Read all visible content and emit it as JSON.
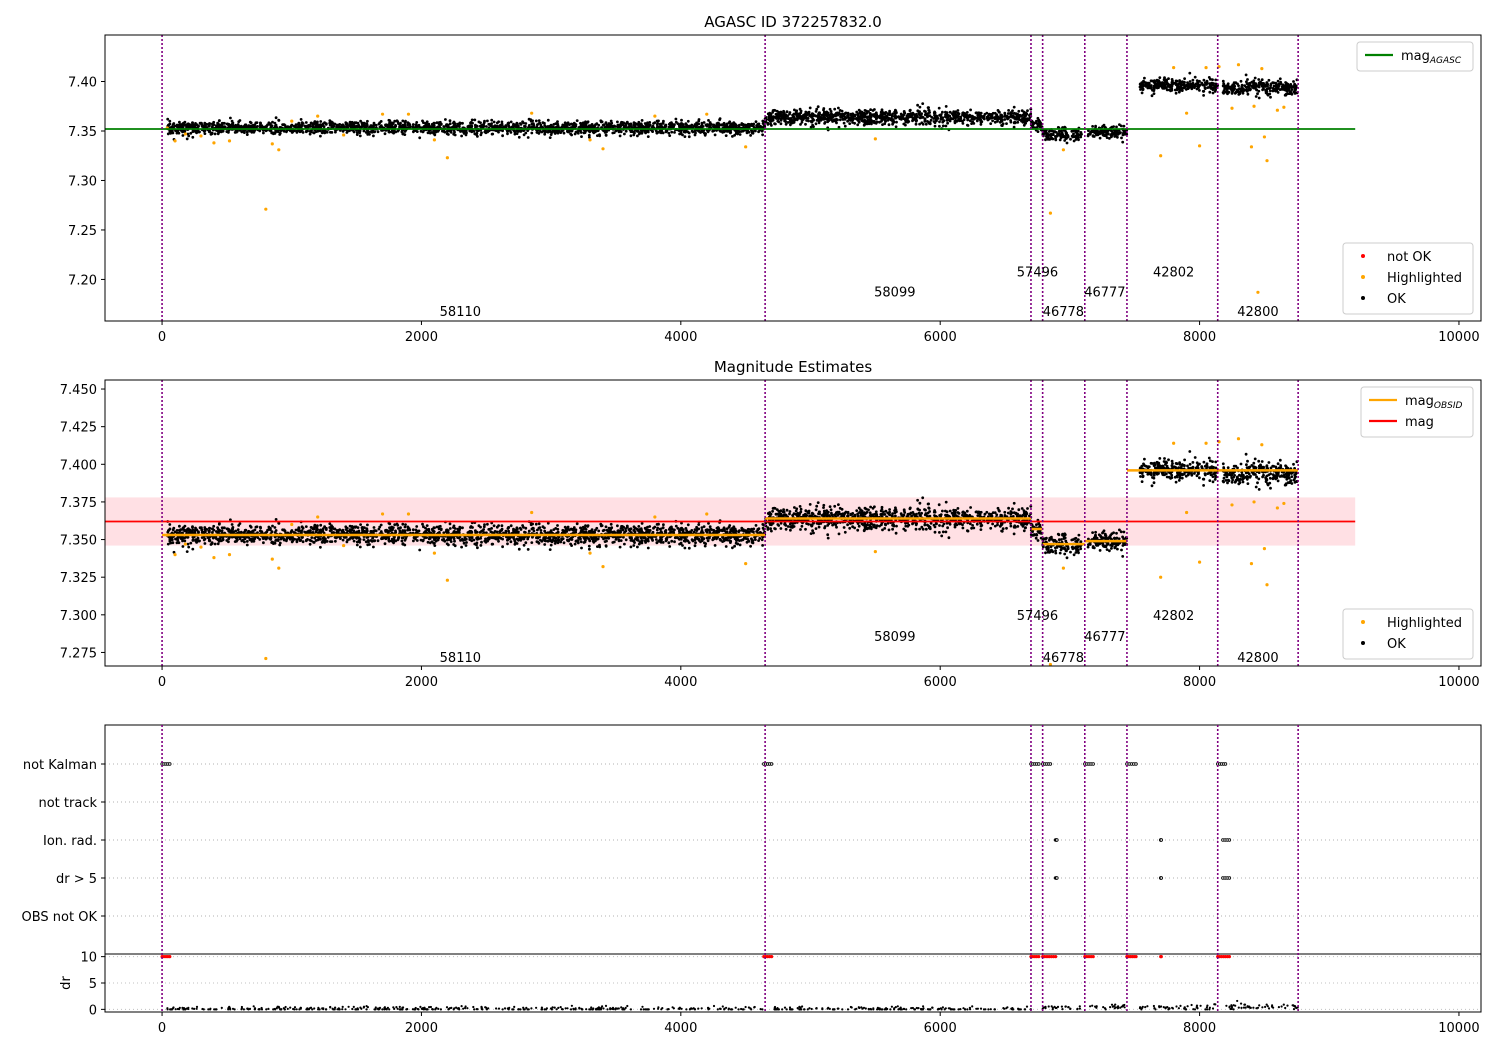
{
  "chart_data": [
    {
      "type": "scatter",
      "title": "AGASC ID 372257832.0",
      "xlim": [
        -440,
        10170
      ],
      "ylim": [
        7.158,
        7.447
      ],
      "xticks": [
        0,
        2000,
        4000,
        6000,
        8000,
        10000
      ],
      "xtick_labels": [
        "0",
        "2000",
        "4000",
        "6000",
        "8000",
        "10000"
      ],
      "yticks": [
        7.2,
        7.25,
        7.3,
        7.35,
        7.4
      ],
      "ytick_labels": [
        "7.20",
        "7.25",
        "7.30",
        "7.35",
        "7.40"
      ],
      "grid": false,
      "obs_boundaries": [
        0,
        4650,
        6700,
        6790,
        7115,
        7440,
        8140,
        8760
      ],
      "segments": [
        {
          "x0": 40,
          "x1": 4650,
          "center": 7.353,
          "spread": 0.006
        },
        {
          "x0": 4650,
          "x1": 6700,
          "center": 7.364,
          "spread": 0.007
        },
        {
          "x0": 6700,
          "x1": 6790,
          "center": 7.356,
          "spread": 0.005
        },
        {
          "x0": 6790,
          "x1": 7090,
          "center": 7.346,
          "spread": 0.006
        },
        {
          "x0": 7140,
          "x1": 7440,
          "center": 7.349,
          "spread": 0.006
        },
        {
          "x0": 7540,
          "x1": 8140,
          "center": 7.396,
          "spread": 0.006
        },
        {
          "x0": 8180,
          "x1": 8760,
          "center": 7.394,
          "spread": 0.007
        }
      ],
      "highlighted_points": [
        [
          40,
          7.353
        ],
        [
          100,
          7.34
        ],
        [
          180,
          7.347
        ],
        [
          300,
          7.345
        ],
        [
          400,
          7.338
        ],
        [
          520,
          7.34
        ],
        [
          800,
          7.271
        ],
        [
          850,
          7.337
        ],
        [
          900,
          7.331
        ],
        [
          1000,
          7.36
        ],
        [
          1200,
          7.365
        ],
        [
          1400,
          7.346
        ],
        [
          1700,
          7.367
        ],
        [
          1900,
          7.367
        ],
        [
          2100,
          7.341
        ],
        [
          2200,
          7.323
        ],
        [
          2850,
          7.368
        ],
        [
          3300,
          7.341
        ],
        [
          3400,
          7.332
        ],
        [
          3800,
          7.365
        ],
        [
          4200,
          7.367
        ],
        [
          4500,
          7.334
        ],
        [
          5500,
          7.342
        ],
        [
          6850,
          7.267
        ],
        [
          6950,
          7.331
        ],
        [
          7700,
          7.325
        ],
        [
          7800,
          7.414
        ],
        [
          7900,
          7.368
        ],
        [
          8000,
          7.335
        ],
        [
          8050,
          7.414
        ],
        [
          8150,
          7.415
        ],
        [
          8250,
          7.373
        ],
        [
          8300,
          7.417
        ],
        [
          8400,
          7.334
        ],
        [
          8420,
          7.375
        ],
        [
          8450,
          7.187
        ],
        [
          8480,
          7.413
        ],
        [
          8500,
          7.344
        ],
        [
          8520,
          7.32
        ],
        [
          8600,
          7.371
        ],
        [
          8650,
          7.374
        ]
      ],
      "lines": [
        {
          "name": "mag",
          "subscript": "AGASC",
          "color": "#008000",
          "y": 7.352,
          "x0": -440,
          "x1": 9200
        }
      ],
      "legend_top": {
        "placement": "upper right",
        "entries": [
          {
            "label": "mag",
            "subscript": "AGASC",
            "color": "#008000"
          }
        ]
      },
      "legend_bottom": {
        "placement": "lower right",
        "entries": [
          {
            "label": "not OK",
            "color": "#ff0000"
          },
          {
            "label": "Highlighted",
            "color": "#ffa500"
          },
          {
            "label": "OK",
            "color": "#000000"
          }
        ]
      },
      "obsid_labels": [
        {
          "text": "58110",
          "x": 2300,
          "y": 7.168
        },
        {
          "text": "58099",
          "x": 5650,
          "y": 7.188
        },
        {
          "text": "57496",
          "x": 6750,
          "y": 7.208
        },
        {
          "text": "46778",
          "x": 6950,
          "y": 7.168
        },
        {
          "text": "46777",
          "x": 7270,
          "y": 7.188
        },
        {
          "text": "42802",
          "x": 7800,
          "y": 7.208
        },
        {
          "text": "42800",
          "x": 8450,
          "y": 7.168
        }
      ]
    },
    {
      "type": "scatter",
      "title": "Magnitude Estimates",
      "xlim": [
        -440,
        10170
      ],
      "ylim": [
        7.266,
        7.456
      ],
      "xticks": [
        0,
        2000,
        4000,
        6000,
        8000,
        10000
      ],
      "xtick_labels": [
        "0",
        "2000",
        "4000",
        "6000",
        "8000",
        "10000"
      ],
      "yticks": [
        7.275,
        7.3,
        7.325,
        7.35,
        7.375,
        7.4,
        7.425,
        7.45
      ],
      "ytick_labels": [
        "7.275",
        "7.300",
        "7.325",
        "7.350",
        "7.375",
        "7.400",
        "7.425",
        "7.450"
      ],
      "grid": false,
      "obs_boundaries": [
        0,
        4650,
        6700,
        6790,
        7115,
        7440,
        8140,
        8760
      ],
      "band": {
        "y0": 7.346,
        "y1": 7.378,
        "x0": -440,
        "x1": 9200,
        "color": "#ffe0e4"
      },
      "lines": [
        {
          "name": "mag",
          "color": "#ff0000",
          "y": 7.362,
          "x0": -440,
          "x1": 9200
        }
      ],
      "obsid_mags": [
        {
          "x0": 0,
          "x1": 4650,
          "y": 7.353
        },
        {
          "x0": 4650,
          "x1": 6700,
          "y": 7.364
        },
        {
          "x0": 6700,
          "x1": 6790,
          "y": 7.357
        },
        {
          "x0": 6790,
          "x1": 7115,
          "y": 7.347
        },
        {
          "x0": 7115,
          "x1": 7440,
          "y": 7.349
        },
        {
          "x0": 7440,
          "x1": 8140,
          "y": 7.396
        },
        {
          "x0": 8140,
          "x1": 8760,
          "y": 7.396
        }
      ],
      "legend_top": {
        "placement": "upper right",
        "entries": [
          {
            "label": "mag",
            "subscript": "OBSID",
            "color": "#ffa500"
          },
          {
            "label": "mag",
            "color": "#ff0000"
          }
        ]
      },
      "legend_bottom": {
        "placement": "lower right",
        "entries": [
          {
            "label": "Highlighted",
            "color": "#ffa500"
          },
          {
            "label": "OK",
            "color": "#000000"
          }
        ]
      },
      "obsid_labels": [
        {
          "text": "58110",
          "x": 2300,
          "y": 7.272
        },
        {
          "text": "58099",
          "x": 5650,
          "y": 7.286
        },
        {
          "text": "57496",
          "x": 6750,
          "y": 7.3
        },
        {
          "text": "46778",
          "x": 6950,
          "y": 7.272
        },
        {
          "text": "46777",
          "x": 7270,
          "y": 7.286
        },
        {
          "text": "42802",
          "x": 7800,
          "y": 7.3
        },
        {
          "text": "42800",
          "x": 8450,
          "y": 7.272
        }
      ]
    },
    {
      "type": "scatter",
      "title": "",
      "xlim": [
        -440,
        10170
      ],
      "categories": [
        "not Kalman",
        "not track",
        "Ion. rad.",
        "dr > 5",
        "OBS not OK"
      ],
      "flag_ranges": {
        "not Kalman": [
          [
            0,
            60
          ],
          [
            4640,
            4700
          ],
          [
            6700,
            6760
          ],
          [
            6790,
            6850
          ],
          [
            7115,
            7180
          ],
          [
            7440,
            7510
          ],
          [
            8140,
            8200
          ]
        ],
        "Ion. rad.": [
          [
            6890,
            6900
          ],
          [
            7700,
            7705
          ],
          [
            8180,
            8230
          ]
        ],
        "dr > 5": [
          [
            6890,
            6900
          ],
          [
            7700,
            7705
          ],
          [
            8180,
            8230
          ]
        ]
      },
      "dr_ylim": [
        -0.5,
        10.5
      ],
      "dr_yticks": [
        0,
        5,
        10
      ],
      "dr_ytick_labels": [
        "0",
        "5",
        "10"
      ],
      "ylabel": "dr",
      "dr_flagged_ranges": [
        [
          0,
          60
        ],
        [
          4640,
          4700
        ],
        [
          6700,
          6760
        ],
        [
          6790,
          6890
        ],
        [
          7115,
          7180
        ],
        [
          7440,
          7510
        ],
        [
          7700,
          7705
        ],
        [
          8140,
          8230
        ]
      ],
      "dr_segments": [
        [
          40,
          4650,
          0.05
        ],
        [
          4700,
          6700,
          0.05
        ],
        [
          6790,
          7090,
          0.4
        ],
        [
          7140,
          7440,
          0.5
        ],
        [
          7540,
          8140,
          0.3
        ],
        [
          8180,
          8760,
          0.5
        ]
      ],
      "obs_boundaries": [
        0,
        4650,
        6700,
        6790,
        7115,
        7440,
        8140,
        8760
      ]
    }
  ]
}
